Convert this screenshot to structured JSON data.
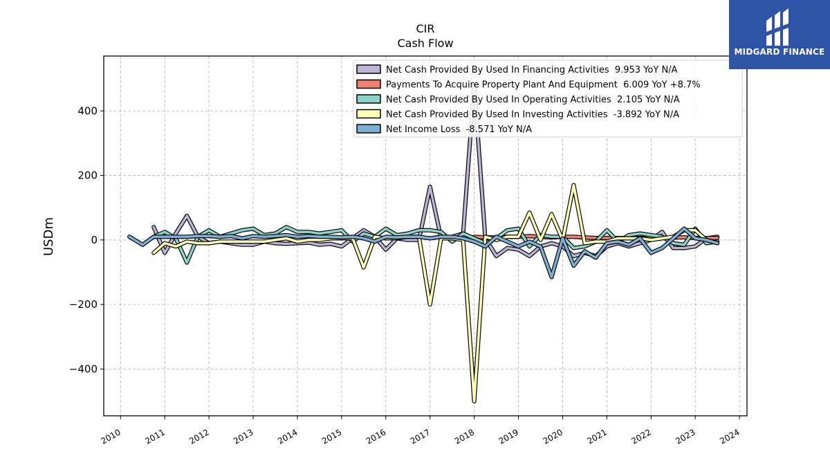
{
  "logo": {
    "text": "MIDGARD FINANCE",
    "bg_color": "#2e54a8"
  },
  "chart_data": {
    "type": "line",
    "title": "CIR",
    "subtitle": "Cash Flow",
    "ylabel": "USDm",
    "xlabel": "",
    "xlim": [
      2009.62,
      2024.17
    ],
    "ylim": [
      -545,
      570
    ],
    "yticks": [
      -400,
      -200,
      0,
      200,
      400
    ],
    "ytick_labels": [
      "−400",
      "−200",
      "0",
      "200",
      "400"
    ],
    "xticks": [
      2010,
      2011,
      2012,
      2013,
      2014,
      2015,
      2016,
      2017,
      2018,
      2019,
      2020,
      2021,
      2022,
      2023,
      2024
    ],
    "xtick_labels": [
      "2010",
      "2011",
      "2012",
      "2013",
      "2014",
      "2015",
      "2016",
      "2017",
      "2018",
      "2019",
      "2020",
      "2021",
      "2022",
      "2023",
      "2024"
    ],
    "grid": true,
    "legend_position": "top-right",
    "series": [
      {
        "name": "Net Cash Provided By Used In Financing Activities  9.953 YoY N/A",
        "color": "#bcb3d6",
        "x": [
          2010.75,
          2011.0,
          2011.25,
          2011.5,
          2011.75,
          2012.0,
          2012.25,
          2012.5,
          2012.75,
          2013.0,
          2013.25,
          2013.5,
          2013.75,
          2014.0,
          2014.25,
          2014.5,
          2014.75,
          2015.0,
          2015.25,
          2015.5,
          2015.75,
          2016.0,
          2016.25,
          2016.5,
          2016.75,
          2017.0,
          2017.25,
          2017.5,
          2017.75,
          2018.0,
          2018.25,
          2018.5,
          2018.75,
          2019.0,
          2019.25,
          2019.5,
          2019.75,
          2020.0,
          2020.25,
          2020.5,
          2020.75,
          2021.0,
          2021.25,
          2021.5,
          2021.75,
          2022.0,
          2022.25,
          2022.5,
          2022.75,
          2023.0,
          2023.25,
          2023.5
        ],
        "values": [
          40,
          -40,
          20,
          75,
          10,
          -10,
          -5,
          -10,
          -15,
          -15,
          -5,
          -10,
          -12,
          -10,
          -8,
          -15,
          -12,
          -20,
          5,
          30,
          10,
          -30,
          5,
          0,
          0,
          165,
          5,
          10,
          20,
          480,
          5,
          -50,
          -25,
          -30,
          -50,
          -20,
          -10,
          -20,
          -50,
          -40,
          -50,
          -20,
          -10,
          -20,
          -10,
          0,
          25,
          -25,
          -25,
          -20,
          5,
          10
        ]
      },
      {
        "name": "Payments To Acquire Property Plant And Equipment  6.009 YoY +8.7%",
        "color": "#f08070",
        "x": [
          2018.0,
          2018.25,
          2018.5,
          2018.75,
          2019.0,
          2019.25,
          2019.5,
          2019.75,
          2020.0,
          2020.25,
          2020.5,
          2020.75,
          2021.0,
          2021.25,
          2021.5,
          2021.75,
          2022.0,
          2022.25,
          2022.5,
          2022.75,
          2023.0,
          2023.25,
          2023.5
        ],
        "values": [
          10,
          8,
          8,
          10,
          10,
          12,
          10,
          8,
          10,
          10,
          8,
          6,
          6,
          6,
          6,
          6,
          6,
          6,
          8,
          8,
          6,
          6,
          6
        ]
      },
      {
        "name": "Net Cash Provided By Used In Operating Activities  2.105 YoY N/A",
        "color": "#8dd3c7",
        "x": [
          2010.75,
          2011.0,
          2011.25,
          2011.5,
          2011.75,
          2012.0,
          2012.25,
          2012.5,
          2012.75,
          2013.0,
          2013.25,
          2013.5,
          2013.75,
          2014.0,
          2014.25,
          2014.5,
          2014.75,
          2015.0,
          2015.25,
          2015.5,
          2015.75,
          2016.0,
          2016.25,
          2016.5,
          2016.75,
          2017.0,
          2017.25,
          2017.5,
          2017.75,
          2018.0,
          2018.25,
          2018.5,
          2018.75,
          2019.0,
          2019.25,
          2019.5,
          2019.75,
          2020.0,
          2020.25,
          2020.5,
          2020.75,
          2021.0,
          2021.25,
          2021.5,
          2021.75,
          2022.0,
          2022.25,
          2022.5,
          2022.75,
          2023.0,
          2023.25,
          2023.5
        ],
        "values": [
          10,
          25,
          5,
          -70,
          10,
          30,
          10,
          20,
          30,
          35,
          15,
          20,
          40,
          25,
          25,
          20,
          25,
          30,
          -5,
          20,
          10,
          35,
          15,
          20,
          30,
          30,
          25,
          -5,
          20,
          5,
          -10,
          5,
          30,
          35,
          -20,
          15,
          10,
          10,
          -25,
          -20,
          -5,
          30,
          -5,
          15,
          20,
          15,
          10,
          -10,
          -15,
          35,
          -10,
          -5
        ]
      },
      {
        "name": "Net Cash Provided By Used In Investing Activities  -3.892 YoY N/A",
        "color": "#ffffb3",
        "x": [
          2010.75,
          2011.0,
          2011.25,
          2011.5,
          2011.75,
          2012.0,
          2012.25,
          2012.5,
          2012.75,
          2013.0,
          2013.25,
          2013.5,
          2013.75,
          2014.0,
          2014.25,
          2014.5,
          2014.75,
          2015.0,
          2015.25,
          2015.5,
          2015.75,
          2016.0,
          2016.25,
          2016.5,
          2016.75,
          2017.0,
          2017.25,
          2017.5,
          2017.75,
          2018.0,
          2018.25,
          2018.5,
          2018.75,
          2019.0,
          2019.25,
          2019.5,
          2019.75,
          2020.0,
          2020.25,
          2020.5,
          2020.75,
          2021.0,
          2021.25,
          2021.5,
          2021.75,
          2022.0,
          2022.25,
          2022.5,
          2022.75,
          2023.0,
          2023.25,
          2023.5
        ],
        "values": [
          -40,
          -10,
          -20,
          -5,
          -10,
          -10,
          -5,
          -5,
          -5,
          -5,
          -5,
          0,
          5,
          -5,
          0,
          0,
          5,
          5,
          5,
          -85,
          10,
          5,
          5,
          10,
          10,
          -200,
          5,
          5,
          0,
          -500,
          10,
          0,
          10,
          10,
          85,
          0,
          80,
          0,
          170,
          -10,
          -5,
          -5,
          5,
          5,
          5,
          0,
          5,
          10,
          30,
          30,
          0,
          -10
        ]
      },
      {
        "name": "Net Income Loss  -8.571 YoY N/A",
        "color": "#7bafd4",
        "x": [
          2010.2,
          2010.5,
          2010.75,
          2011.0,
          2011.25,
          2011.5,
          2011.75,
          2012.0,
          2012.25,
          2012.5,
          2012.75,
          2013.0,
          2013.25,
          2013.5,
          2013.75,
          2014.0,
          2014.25,
          2014.5,
          2014.75,
          2015.0,
          2015.25,
          2015.5,
          2015.75,
          2016.0,
          2016.25,
          2016.5,
          2016.75,
          2017.0,
          2017.25,
          2017.5,
          2017.75,
          2018.0,
          2018.25,
          2018.5,
          2018.75,
          2019.0,
          2019.25,
          2019.5,
          2019.75,
          2020.0,
          2020.25,
          2020.5,
          2020.75,
          2021.0,
          2021.25,
          2021.5,
          2021.75,
          2022.0,
          2022.25,
          2022.5,
          2022.75,
          2023.0,
          2023.25,
          2023.5
        ],
        "values": [
          10,
          -15,
          10,
          10,
          10,
          10,
          12,
          12,
          10,
          12,
          5,
          12,
          10,
          12,
          15,
          10,
          12,
          10,
          10,
          8,
          10,
          5,
          -5,
          10,
          8,
          10,
          10,
          5,
          10,
          10,
          5,
          -5,
          -20,
          10,
          -5,
          -20,
          -5,
          -20,
          -115,
          5,
          -80,
          -35,
          -55,
          -10,
          -5,
          -15,
          5,
          -40,
          -25,
          5,
          35,
          5,
          0,
          -10
        ]
      }
    ]
  }
}
